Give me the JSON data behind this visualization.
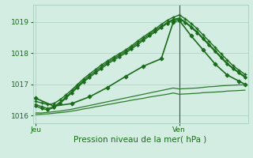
{
  "background_color": "#d4ede3",
  "grid_color": "#a8cfc0",
  "line_color": "#1a6b1a",
  "xlabel": "Pression niveau de la mer( hPa )",
  "ylim": [
    1015.75,
    1019.55
  ],
  "yticks": [
    1016,
    1017,
    1018,
    1019
  ],
  "xlim": [
    -0.5,
    35.5
  ],
  "vline_x": 24,
  "xtick_positions": [
    0,
    24
  ],
  "xtick_labels": [
    "Jeu",
    "Ven"
  ],
  "series": [
    {
      "x": [
        0,
        1,
        2,
        3,
        4,
        5,
        6,
        7,
        8,
        9,
        10,
        11,
        12,
        13,
        14,
        15,
        16,
        17,
        18,
        19,
        20,
        21,
        22,
        23,
        24,
        25,
        26,
        27,
        28,
        29,
        30,
        31,
        32,
        33,
        34,
        35
      ],
      "y": [
        1016.45,
        1016.4,
        1016.35,
        1016.38,
        1016.5,
        1016.65,
        1016.82,
        1017.0,
        1017.18,
        1017.33,
        1017.48,
        1017.62,
        1017.75,
        1017.87,
        1017.98,
        1018.1,
        1018.23,
        1018.38,
        1018.52,
        1018.65,
        1018.78,
        1018.92,
        1019.05,
        1019.15,
        1019.22,
        1019.1,
        1018.95,
        1018.78,
        1018.58,
        1018.38,
        1018.18,
        1017.98,
        1017.78,
        1017.6,
        1017.45,
        1017.32
      ],
      "marker": "+",
      "ms": 3.5,
      "mew": 1.0,
      "lw": 1.0,
      "color": "#1a6b1a"
    },
    {
      "x": [
        0,
        1,
        2,
        3,
        4,
        5,
        6,
        7,
        8,
        9,
        10,
        11,
        12,
        13,
        14,
        15,
        16,
        17,
        18,
        19,
        20,
        21,
        22,
        23,
        24,
        25,
        26,
        27,
        28,
        29,
        30,
        31,
        32,
        33,
        34,
        35
      ],
      "y": [
        1016.35,
        1016.28,
        1016.22,
        1016.28,
        1016.42,
        1016.58,
        1016.76,
        1016.95,
        1017.12,
        1017.27,
        1017.42,
        1017.56,
        1017.7,
        1017.82,
        1017.93,
        1018.05,
        1018.18,
        1018.32,
        1018.46,
        1018.6,
        1018.73,
        1018.86,
        1018.98,
        1019.08,
        1019.12,
        1019.0,
        1018.85,
        1018.68,
        1018.48,
        1018.28,
        1018.08,
        1017.88,
        1017.68,
        1017.52,
        1017.38,
        1017.25
      ],
      "marker": "+",
      "ms": 3.5,
      "mew": 1.0,
      "lw": 1.0,
      "color": "#1a6b1a"
    },
    {
      "x": [
        0,
        1,
        2,
        3,
        4,
        5,
        6,
        7,
        8,
        9,
        10,
        11,
        12,
        13,
        14,
        15,
        16,
        17,
        18,
        19,
        20,
        21,
        22,
        23,
        24,
        25,
        26,
        27,
        28,
        29,
        30,
        31,
        32,
        33,
        34,
        35
      ],
      "y": [
        1016.3,
        1016.22,
        1016.18,
        1016.25,
        1016.38,
        1016.55,
        1016.72,
        1016.9,
        1017.08,
        1017.22,
        1017.37,
        1017.51,
        1017.65,
        1017.77,
        1017.88,
        1018.0,
        1018.13,
        1018.27,
        1018.41,
        1018.55,
        1018.68,
        1018.82,
        1018.95,
        1019.06,
        1019.1,
        1018.98,
        1018.82,
        1018.65,
        1018.45,
        1018.25,
        1018.05,
        1017.85,
        1017.65,
        1017.5,
        1017.36,
        1017.22
      ],
      "marker": "D",
      "ms": 2.0,
      "mew": 0.6,
      "lw": 1.0,
      "color": "#1a6b1a"
    },
    {
      "x": [
        0,
        3,
        6,
        9,
        12,
        15,
        18,
        21,
        23,
        24,
        26,
        28,
        30,
        32,
        34,
        35
      ],
      "y": [
        1016.55,
        1016.3,
        1016.38,
        1016.6,
        1016.9,
        1017.25,
        1017.58,
        1017.82,
        1019.0,
        1019.05,
        1018.55,
        1018.1,
        1017.65,
        1017.3,
        1017.1,
        1017.0
      ],
      "marker": "D",
      "ms": 2.5,
      "mew": 0.8,
      "lw": 1.2,
      "color": "#1a6b1a"
    },
    {
      "x": [
        0,
        1,
        2,
        3,
        4,
        5,
        6,
        7,
        8,
        9,
        10,
        11,
        12,
        13,
        14,
        15,
        16,
        17,
        18,
        19,
        20,
        21,
        22,
        23,
        24,
        25,
        26,
        27,
        28,
        29,
        30,
        31,
        32,
        33,
        34,
        35
      ],
      "y": [
        1016.08,
        1016.08,
        1016.1,
        1016.12,
        1016.14,
        1016.17,
        1016.2,
        1016.24,
        1016.28,
        1016.32,
        1016.36,
        1016.4,
        1016.44,
        1016.48,
        1016.52,
        1016.56,
        1016.6,
        1016.64,
        1016.68,
        1016.72,
        1016.76,
        1016.8,
        1016.84,
        1016.88,
        1016.85,
        1016.86,
        1016.87,
        1016.88,
        1016.9,
        1016.92,
        1016.93,
        1016.95,
        1016.96,
        1016.97,
        1016.98,
        1016.98
      ],
      "marker": null,
      "ms": 0,
      "mew": 0,
      "lw": 0.9,
      "color": "#2d7a2d"
    },
    {
      "x": [
        0,
        1,
        2,
        3,
        4,
        5,
        6,
        7,
        8,
        9,
        10,
        11,
        12,
        13,
        14,
        15,
        16,
        17,
        18,
        19,
        20,
        21,
        22,
        23,
        24,
        25,
        26,
        27,
        28,
        29,
        30,
        31,
        32,
        33,
        34,
        35
      ],
      "y": [
        1016.03,
        1016.04,
        1016.05,
        1016.07,
        1016.09,
        1016.11,
        1016.14,
        1016.17,
        1016.21,
        1016.24,
        1016.28,
        1016.31,
        1016.35,
        1016.38,
        1016.42,
        1016.45,
        1016.49,
        1016.52,
        1016.55,
        1016.59,
        1016.62,
        1016.65,
        1016.68,
        1016.72,
        1016.68,
        1016.69,
        1016.7,
        1016.71,
        1016.73,
        1016.74,
        1016.75,
        1016.76,
        1016.78,
        1016.79,
        1016.8,
        1016.81
      ],
      "marker": null,
      "ms": 0,
      "mew": 0,
      "lw": 0.9,
      "color": "#2d7a2d"
    }
  ]
}
